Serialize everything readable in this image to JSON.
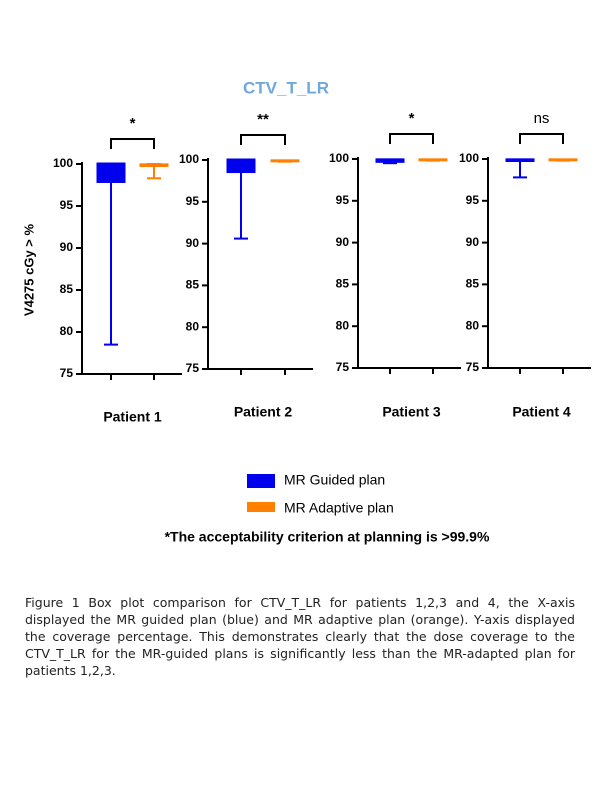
{
  "title": "CTV_T_LR",
  "note": "*The acceptability criterion at planning is >99.9%",
  "caption": "Figure 1 Box plot comparison for CTV_T_LR for patients 1,2,3 and 4, the X-axis displayed the MR guided plan (blue) and MR adaptive plan (orange). Y-axis displayed the coverage percentage. This demonstrates clearly that the dose coverage to the CTV_T_LR for the MR-guided plans is significantly less than the MR-adapted plan for patients 1,2,3.",
  "chart_data": [
    {
      "type": "box",
      "xlabel": "Patient 1",
      "ylabel": "V4275 cGy  > %",
      "annotation": "*",
      "ylim": [
        75,
        100
      ],
      "yticks": [
        75,
        80,
        85,
        90,
        95,
        100
      ],
      "series": [
        {
          "name": "MR Guided plan",
          "color": "#0000ee",
          "min": 78.5,
          "q1": 97.8,
          "median": 98.5,
          "q3": 100,
          "max": 100
        },
        {
          "name": "MR Adaptive plan",
          "color": "#ff8000",
          "min": 98.3,
          "q1": 99.7,
          "median": 99.8,
          "q3": 99.9,
          "max": 100
        }
      ]
    },
    {
      "type": "box",
      "xlabel": "Patient 2",
      "annotation": "**",
      "ylim": [
        75,
        100
      ],
      "yticks": [
        75,
        80,
        85,
        90,
        95,
        100
      ],
      "series": [
        {
          "color": "#0000ee",
          "min": 90.6,
          "q1": 98.5,
          "median": 99.5,
          "q3": 100,
          "max": 100
        },
        {
          "color": "#ff8000",
          "min": 99.8,
          "q1": 99.8,
          "median": 99.9,
          "q3": 99.9,
          "max": 99.9
        }
      ]
    },
    {
      "type": "box",
      "xlabel": "Patient 3",
      "annotation": "*",
      "ylim": [
        75,
        100
      ],
      "yticks": [
        75,
        80,
        85,
        90,
        95,
        100
      ],
      "series": [
        {
          "color": "#0000ee",
          "min": 99.5,
          "q1": 99.6,
          "median": 99.8,
          "q3": 99.9,
          "max": 99.9
        },
        {
          "color": "#ff8000",
          "min": 99.8,
          "q1": 99.8,
          "median": 99.9,
          "q3": 99.9,
          "max": 99.9
        }
      ]
    },
    {
      "type": "box",
      "xlabel": "Patient 4",
      "annotation": "ns",
      "ylim": [
        75,
        100
      ],
      "yticks": [
        75,
        80,
        85,
        90,
        95,
        100
      ],
      "series": [
        {
          "color": "#0000ee",
          "min": 97.8,
          "q1": 99.7,
          "median": 99.8,
          "q3": 99.9,
          "max": 99.9
        },
        {
          "color": "#ff8000",
          "min": 99.8,
          "q1": 99.8,
          "median": 99.9,
          "q3": 99.9,
          "max": 99.9
        }
      ]
    }
  ]
}
